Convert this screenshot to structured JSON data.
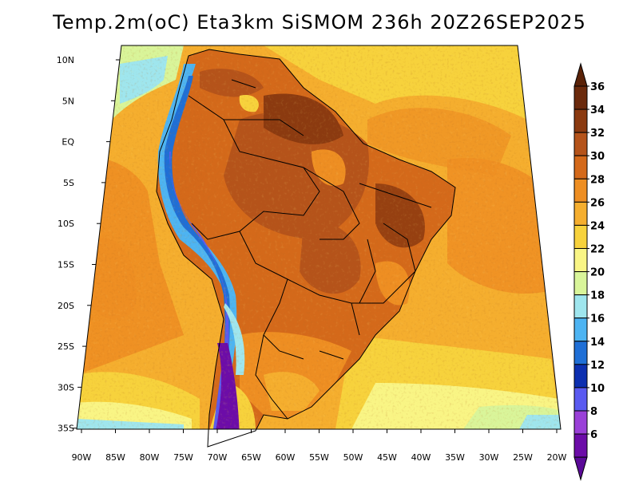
{
  "title": "Temp.2m(oC) Eta3km SiSMOM 236h 20Z26SEP2025",
  "lat_ticks": [
    "10N",
    "5N",
    "EQ",
    "5S",
    "10S",
    "15S",
    "20S",
    "25S",
    "30S",
    "35S"
  ],
  "lon_ticks": [
    "90W",
    "85W",
    "80W",
    "75W",
    "70W",
    "65W",
    "60W",
    "55W",
    "50W",
    "45W",
    "40W",
    "35W",
    "30W",
    "25W",
    "20W"
  ],
  "colorbar": {
    "labels": [
      "36",
      "34",
      "32",
      "30",
      "28",
      "26",
      "24",
      "22",
      "20",
      "18",
      "16",
      "14",
      "12",
      "10",
      "8",
      "6"
    ],
    "colors": [
      "#6b2a0c",
      "#8b3a10",
      "#b5531a",
      "#d4691a",
      "#ee8e22",
      "#f5ae2e",
      "#f7d23c",
      "#f9f585",
      "#d9f59a",
      "#9fe6ee",
      "#4db4f2",
      "#1f6fd6",
      "#0c2fb0",
      "#5a5af0",
      "#9a40d8",
      "#6c0ca8"
    ],
    "over_color": "#5a2208",
    "under_color": "#5b0a98"
  }
}
